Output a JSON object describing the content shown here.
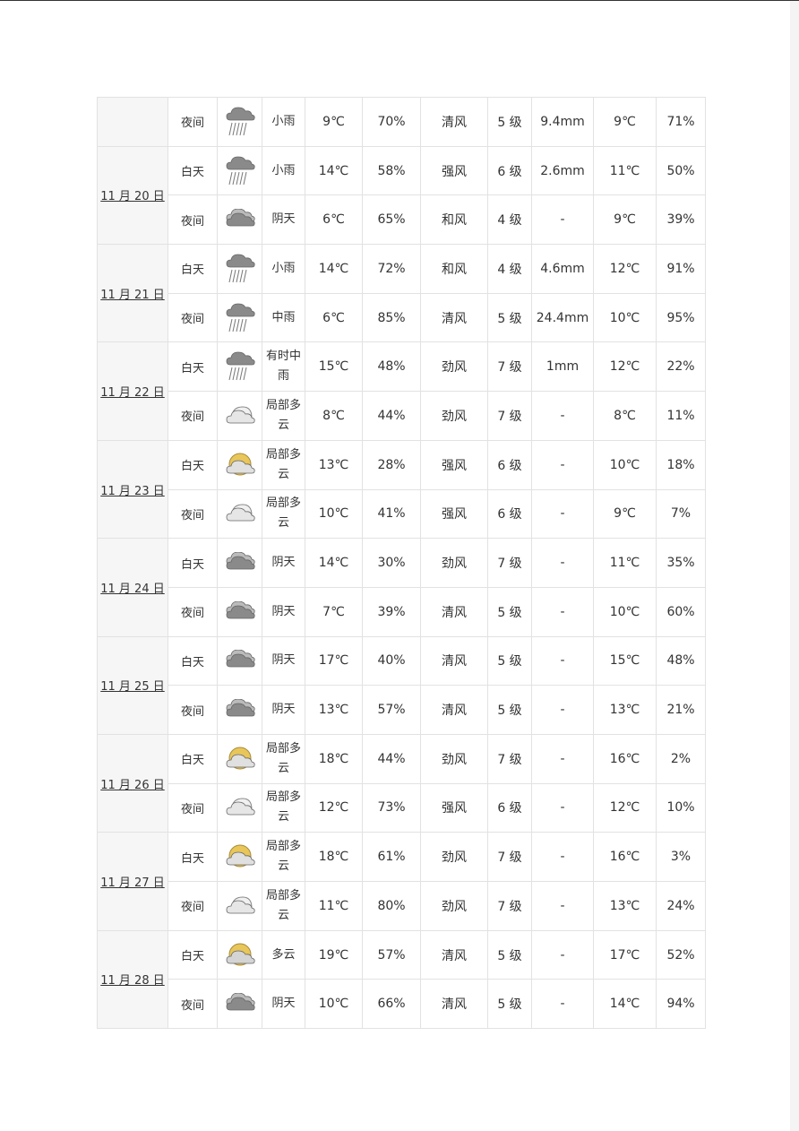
{
  "icon_types": {
    "rain": "rain-cloud-icon",
    "overcast": "overcast-cloud-icon",
    "partly-night": "partly-cloudy-night-icon",
    "partly-day": "partly-cloudy-day-icon",
    "cloudy-day": "cloudy-sun-icon"
  },
  "days": [
    {
      "date": "",
      "rows": [
        {
          "period": "夜间",
          "icon": "rain",
          "weather": "小雨",
          "temp": "9℃",
          "humidity": "70%",
          "wind": "清风",
          "level": "5 级",
          "precip": "9.4mm",
          "temp2": "9℃",
          "pct": "71%"
        }
      ]
    },
    {
      "date": "11 月 20 日",
      "rows": [
        {
          "period": "白天",
          "icon": "rain",
          "weather": "小雨",
          "temp": "14℃",
          "humidity": "58%",
          "wind": "强风",
          "level": "6 级",
          "precip": "2.6mm",
          "temp2": "11℃",
          "pct": "50%"
        },
        {
          "period": "夜间",
          "icon": "overcast",
          "weather": "阴天",
          "temp": "6℃",
          "humidity": "65%",
          "wind": "和风",
          "level": "4 级",
          "precip": "-",
          "temp2": "9℃",
          "pct": "39%"
        }
      ]
    },
    {
      "date": "11 月 21 日",
      "rows": [
        {
          "period": "白天",
          "icon": "rain",
          "weather": "小雨",
          "temp": "14℃",
          "humidity": "72%",
          "wind": "和风",
          "level": "4 级",
          "precip": "4.6mm",
          "temp2": "12℃",
          "pct": "91%"
        },
        {
          "period": "夜间",
          "icon": "rain",
          "weather": "中雨",
          "temp": "6℃",
          "humidity": "85%",
          "wind": "清风",
          "level": "5 级",
          "precip": "24.4mm",
          "temp2": "10℃",
          "pct": "95%"
        }
      ]
    },
    {
      "date": "11 月 22 日",
      "rows": [
        {
          "period": "白天",
          "icon": "rain",
          "weather": "有时中雨",
          "temp": "15℃",
          "humidity": "48%",
          "wind": "劲风",
          "level": "7 级",
          "precip": "1mm",
          "temp2": "12℃",
          "pct": "22%"
        },
        {
          "period": "夜间",
          "icon": "partly-night",
          "weather": "局部多云",
          "temp": "8℃",
          "humidity": "44%",
          "wind": "劲风",
          "level": "7 级",
          "precip": "-",
          "temp2": "8℃",
          "pct": "11%"
        }
      ]
    },
    {
      "date": "11 月 23 日",
      "rows": [
        {
          "period": "白天",
          "icon": "partly-day",
          "weather": "局部多云",
          "temp": "13℃",
          "humidity": "28%",
          "wind": "强风",
          "level": "6 级",
          "precip": "-",
          "temp2": "10℃",
          "pct": "18%"
        },
        {
          "period": "夜间",
          "icon": "partly-night",
          "weather": "局部多云",
          "temp": "10℃",
          "humidity": "41%",
          "wind": "强风",
          "level": "6 级",
          "precip": "-",
          "temp2": "9℃",
          "pct": "7%"
        }
      ]
    },
    {
      "date": "11 月 24 日",
      "rows": [
        {
          "period": "白天",
          "icon": "overcast",
          "weather": "阴天",
          "temp": "14℃",
          "humidity": "30%",
          "wind": "劲风",
          "level": "7 级",
          "precip": "-",
          "temp2": "11℃",
          "pct": "35%"
        },
        {
          "period": "夜间",
          "icon": "overcast",
          "weather": "阴天",
          "temp": "7℃",
          "humidity": "39%",
          "wind": "清风",
          "level": "5 级",
          "precip": "-",
          "temp2": "10℃",
          "pct": "60%"
        }
      ]
    },
    {
      "date": "11 月 25 日",
      "rows": [
        {
          "period": "白天",
          "icon": "overcast",
          "weather": "阴天",
          "temp": "17℃",
          "humidity": "40%",
          "wind": "清风",
          "level": "5 级",
          "precip": "-",
          "temp2": "15℃",
          "pct": "48%"
        },
        {
          "period": "夜间",
          "icon": "overcast",
          "weather": "阴天",
          "temp": "13℃",
          "humidity": "57%",
          "wind": "清风",
          "level": "5 级",
          "precip": "-",
          "temp2": "13℃",
          "pct": "21%"
        }
      ]
    },
    {
      "date": "11 月 26 日",
      "rows": [
        {
          "period": "白天",
          "icon": "partly-day",
          "weather": "局部多云",
          "temp": "18℃",
          "humidity": "44%",
          "wind": "劲风",
          "level": "7 级",
          "precip": "-",
          "temp2": "16℃",
          "pct": "2%"
        },
        {
          "period": "夜间",
          "icon": "partly-night",
          "weather": "局部多云",
          "temp": "12℃",
          "humidity": "73%",
          "wind": "强风",
          "level": "6 级",
          "precip": "-",
          "temp2": "12℃",
          "pct": "10%"
        }
      ]
    },
    {
      "date": "11 月 27 日",
      "rows": [
        {
          "period": "白天",
          "icon": "partly-day",
          "weather": "局部多云",
          "temp": "18℃",
          "humidity": "61%",
          "wind": "劲风",
          "level": "7 级",
          "precip": "-",
          "temp2": "16℃",
          "pct": "3%"
        },
        {
          "period": "夜间",
          "icon": "partly-night",
          "weather": "局部多云",
          "temp": "11℃",
          "humidity": "80%",
          "wind": "劲风",
          "level": "7 级",
          "precip": "-",
          "temp2": "13℃",
          "pct": "24%"
        }
      ]
    },
    {
      "date": "11 月 28 日",
      "rows": [
        {
          "period": "白天",
          "icon": "cloudy-day",
          "weather": "多云",
          "temp": "19℃",
          "humidity": "57%",
          "wind": "清风",
          "level": "5 级",
          "precip": "-",
          "temp2": "17℃",
          "pct": "52%"
        },
        {
          "period": "夜间",
          "icon": "overcast",
          "weather": "阴天",
          "temp": "10℃",
          "humidity": "66%",
          "wind": "清风",
          "level": "5 级",
          "precip": "-",
          "temp2": "14℃",
          "pct": "94%"
        }
      ]
    }
  ]
}
